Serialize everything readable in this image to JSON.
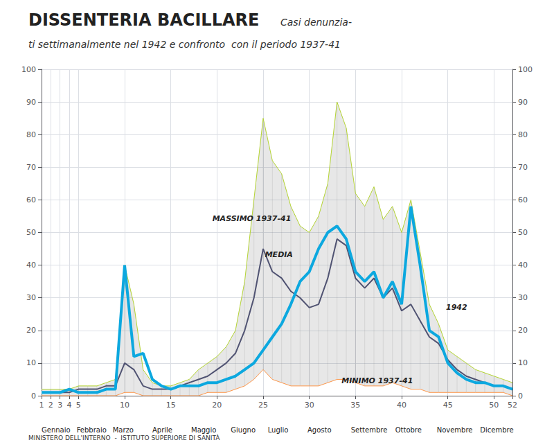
{
  "chart_data": {
    "type": "line",
    "title": "DISSENTERIA BACILLARE",
    "subtitle": [
      "Casi denunzia-",
      "ti settimanalmente nel 1942 e confronto  con il periodo 1937-41"
    ],
    "footer": "MINISTERO DELL'INTERNO  -  ISTITUTO SUPERIORE DI SANITÀ",
    "x": [
      1,
      2,
      3,
      4,
      5,
      6,
      7,
      8,
      9,
      10,
      11,
      12,
      13,
      14,
      15,
      16,
      17,
      18,
      19,
      20,
      21,
      22,
      23,
      24,
      25,
      26,
      27,
      28,
      29,
      30,
      31,
      32,
      33,
      34,
      35,
      36,
      37,
      38,
      39,
      40,
      41,
      42,
      43,
      44,
      45,
      46,
      47,
      48,
      49,
      50,
      51,
      52
    ],
    "series": [
      {
        "line_style": "thin",
        "values": [
          2,
          2,
          2,
          2,
          3,
          3,
          3,
          4,
          5,
          40,
          28,
          8,
          4,
          3,
          3,
          4,
          5,
          8,
          10,
          12,
          15,
          20,
          35,
          60,
          85,
          72,
          68,
          58,
          52,
          50,
          55,
          65,
          90,
          82,
          62,
          58,
          64,
          54,
          58,
          50,
          60,
          44,
          28,
          22,
          14,
          12,
          10,
          8,
          7,
          6,
          5,
          4
        ]
      },
      {
        "line_style": "medium",
        "values": [
          1,
          1,
          1,
          1,
          2,
          2,
          2,
          3,
          3,
          10,
          8,
          3,
          2,
          2,
          2,
          3,
          4,
          5,
          6,
          8,
          10,
          13,
          20,
          30,
          45,
          38,
          36,
          32,
          30,
          27,
          28,
          36,
          48,
          46,
          36,
          33,
          36,
          30,
          33,
          26,
          28,
          23,
          18,
          16,
          11,
          8,
          6,
          5,
          4,
          3,
          3,
          2
        ]
      },
      {
        "line_style": "thin",
        "values": [
          0,
          0,
          0,
          0,
          0,
          0,
          0,
          0,
          0,
          1,
          1,
          0,
          0,
          0,
          0,
          0,
          0,
          0,
          1,
          1,
          1,
          2,
          3,
          5,
          8,
          5,
          4,
          3,
          3,
          3,
          3,
          4,
          5,
          5,
          4,
          3,
          3,
          3,
          4,
          3,
          2,
          2,
          1,
          1,
          1,
          1,
          1,
          1,
          1,
          1,
          1,
          0
        ]
      },
      {
        "line_style": "thick",
        "values": [
          1,
          1,
          1,
          2,
          1,
          1,
          1,
          2,
          2,
          40,
          12,
          13,
          5,
          3,
          2,
          3,
          3,
          3,
          4,
          4,
          5,
          6,
          8,
          10,
          14,
          18,
          22,
          28,
          35,
          38,
          45,
          50,
          52,
          48,
          38,
          35,
          38,
          30,
          35,
          28,
          58,
          40,
          20,
          18,
          10,
          7,
          5,
          4,
          4,
          3,
          3,
          2
        ]
      }
    ],
    "xlim": [
      1,
      52
    ],
    "xticks": [
      1,
      2,
      3,
      4,
      5,
      10,
      15,
      20,
      25,
      30,
      35,
      40,
      45,
      50,
      52
    ],
    "ylim": [
      0,
      100
    ],
    "yticks": [
      0,
      10,
      20,
      30,
      40,
      50,
      60,
      70,
      80,
      90,
      100
    ],
    "y2lim": [
      0,
      100
    ],
    "y2ticks": [
      0,
      10,
      20,
      30,
      40,
      50,
      60,
      70,
      80,
      90,
      100
    ],
    "grid": true,
    "annotations": [
      {
        "text": "MASSIMO 1937-41",
        "x": 19.5,
        "y": 53
      },
      {
        "text": "MEDIA",
        "x": 25.2,
        "y": 42
      },
      {
        "text": "MINIMO 1937-41",
        "x": 33.5,
        "y": 3.5
      },
      {
        "text": "1942",
        "x": 44.8,
        "y": 26
      },
      {
        "text": "Gennaio",
        "x": 1.0,
        "y": -9.5
      },
      {
        "text": "Febbraio",
        "x": 4.8,
        "y": -9.5
      },
      {
        "text": "Marzo",
        "x": 8.7,
        "y": -9.5
      },
      {
        "text": "Aprile",
        "x": 13.0,
        "y": -9.5
      },
      {
        "text": "Maggio",
        "x": 17.2,
        "y": -9.5
      },
      {
        "text": "Giugno",
        "x": 21.5,
        "y": -9.5
      },
      {
        "text": "Luglio",
        "x": 25.5,
        "y": -9.5
      },
      {
        "text": "Agosto",
        "x": 29.8,
        "y": -9.5
      },
      {
        "text": "Settembre",
        "x": 34.5,
        "y": -9.5
      },
      {
        "text": "Ottobre",
        "x": 39.3,
        "y": -9.5
      },
      {
        "text": "Novembre",
        "x": 43.8,
        "y": -9.5
      },
      {
        "text": "Dicembre",
        "x": 48.5,
        "y": -9.5
      }
    ]
  }
}
